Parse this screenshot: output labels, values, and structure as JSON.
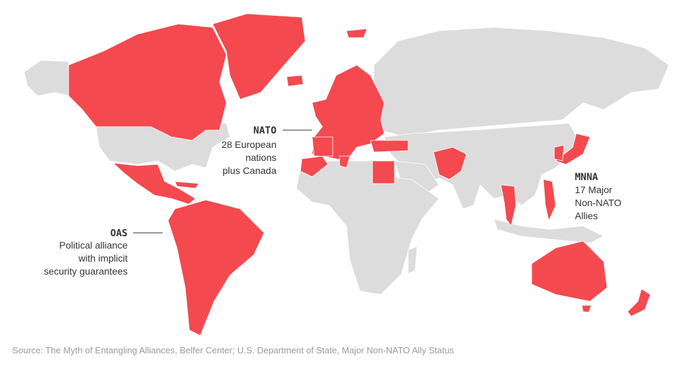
{
  "annotations": [
    {
      "title": "NATO",
      "lines": [
        "28 European",
        "nations",
        "plus Canada"
      ]
    },
    {
      "title": "MNNA",
      "lines": [
        "17 Major",
        "Non-NATO",
        "Allies"
      ]
    },
    {
      "title": "OAS",
      "lines": [
        "Political alliance",
        "with implicit",
        "security guarantees"
      ]
    }
  ],
  "source": "Source: The Myth of Entangling Alliances, Belfer Center; U.S. Department of State, Major Non-NATO Ally Status"
}
